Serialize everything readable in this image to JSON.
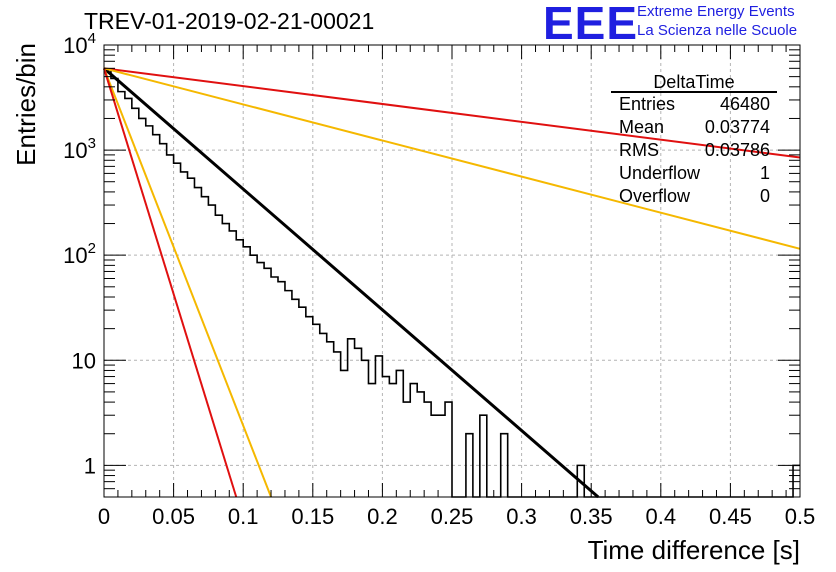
{
  "header": {
    "title": "TREV-01-2019-02-21-00021",
    "logo_mark": "EEE",
    "logo_line1": "Extreme Energy Events",
    "logo_line2": "La Scienza nelle Scuole"
  },
  "stats_box": {
    "name": "DeltaTime",
    "rows": [
      {
        "label": "Entries",
        "value": "46480"
      },
      {
        "label": "Mean",
        "value": "0.03774"
      },
      {
        "label": "RMS",
        "value": "0.03786"
      },
      {
        "label": "Underflow",
        "value": "1"
      },
      {
        "label": "Overflow",
        "value": "0"
      }
    ]
  },
  "colors": {
    "histogram": "#000000",
    "fit": "#000000",
    "red_curves": "#e01010",
    "orange_curves": "#f5b800",
    "grid": "#b4b4b4",
    "logo": "#1f1fe0"
  },
  "chart_data": {
    "type": "line",
    "xlabel": "Time difference [s]",
    "ylabel": "Entries/bin",
    "xlim": [
      0,
      0.5
    ],
    "ylim": [
      0.5,
      10000
    ],
    "yscale": "log",
    "grid": true,
    "x_ticks": [
      "0",
      "0.05",
      "0.1",
      "0.15",
      "0.2",
      "0.25",
      "0.3",
      "0.35",
      "0.4",
      "0.45",
      "0.5"
    ],
    "y_ticks": [
      {
        "base": "10",
        "exp": "4",
        "value": 10000
      },
      {
        "base": "10",
        "exp": "3",
        "value": 1000
      },
      {
        "base": "10",
        "exp": "2",
        "value": 100
      },
      {
        "label": "10",
        "value": 10
      },
      {
        "label": "1",
        "value": 1
      }
    ],
    "histogram": {
      "bin_width": 0.005,
      "counts": [
        5800,
        4800,
        3600,
        3100,
        2500,
        2000,
        1700,
        1400,
        1150,
        900,
        750,
        620,
        540,
        440,
        360,
        300,
        240,
        200,
        170,
        140,
        120,
        100,
        85,
        75,
        62,
        56,
        46,
        38,
        32,
        26,
        22,
        18,
        15,
        12,
        8,
        16,
        13,
        10,
        6,
        11,
        7,
        6,
        8,
        4,
        6,
        5,
        4,
        3,
        3,
        4,
        0.5,
        0,
        2,
        0,
        3,
        0.5,
        0,
        2,
        0.5,
        0,
        0,
        0,
        0,
        0,
        0,
        0,
        0,
        0,
        1,
        0,
        0,
        0,
        0,
        0,
        0,
        0,
        0,
        0,
        0,
        0,
        0,
        0,
        0,
        0,
        0,
        0,
        0,
        0,
        0,
        0,
        0,
        0,
        0,
        0,
        0,
        0,
        0,
        0,
        0,
        1
      ]
    },
    "series": [
      {
        "kind": "fit",
        "color": "#000000",
        "x": [
          0,
          0.355
        ],
        "y": [
          6000,
          0.5
        ]
      },
      {
        "kind": "reference",
        "color": "#e01010",
        "x": [
          0,
          0.5
        ],
        "y": [
          6000,
          850
        ]
      },
      {
        "kind": "reference",
        "color": "#f5b800",
        "x": [
          0,
          0.5
        ],
        "y": [
          6000,
          115
        ]
      },
      {
        "kind": "reference",
        "color": "#f5b800",
        "x": [
          0,
          0.12
        ],
        "y": [
          6000,
          0.5
        ]
      },
      {
        "kind": "reference",
        "color": "#e01010",
        "x": [
          0,
          0.095
        ],
        "y": [
          6000,
          0.5
        ]
      }
    ]
  }
}
